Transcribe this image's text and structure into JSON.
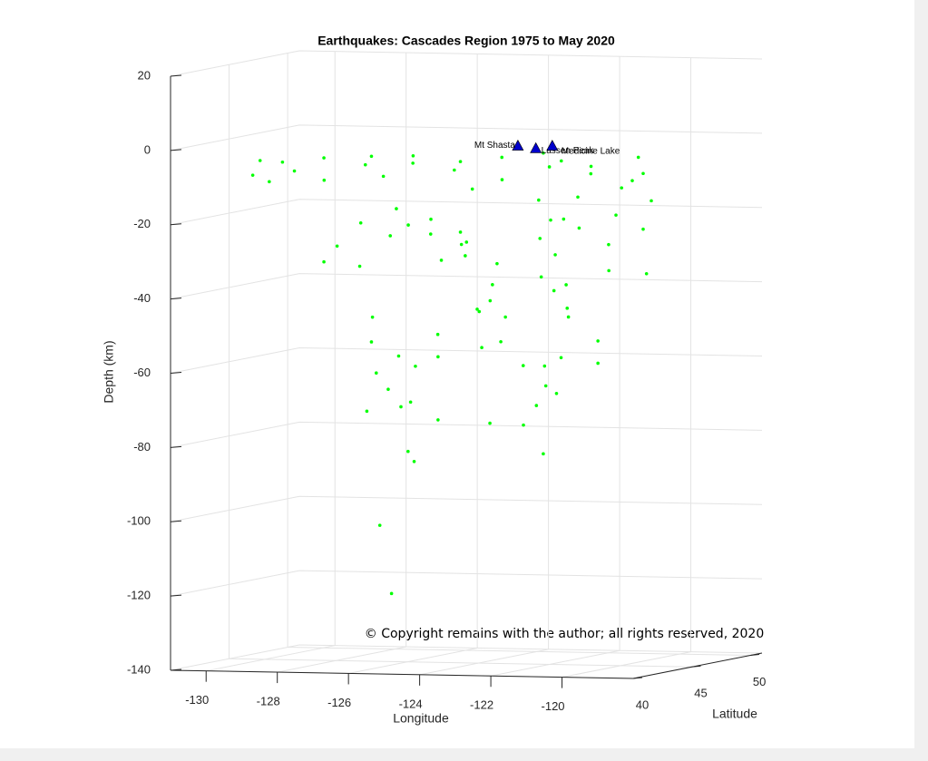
{
  "chart_data": {
    "type": "scatter3d",
    "title": "Earthquakes: Cascades Region 1975 to May 2020",
    "xlabel": "Longitude",
    "ylabel": "Latitude",
    "zlabel": "Depth (km)",
    "annotation": "© Copyright remains with the author; all rights reserved, 2020",
    "xlim": [
      -131,
      -118
    ],
    "ylim": [
      40,
      51
    ],
    "zlim": [
      -140,
      20
    ],
    "xticks": [
      -130,
      -128,
      -126,
      -124,
      -122,
      -120
    ],
    "yticks": [
      40,
      45,
      50
    ],
    "zticks": [
      -140,
      -120,
      -100,
      -80,
      -60,
      -40,
      -20,
      0,
      20
    ],
    "grid": true,
    "series": [
      {
        "color": "#00ff00",
        "x": [
          -129.5,
          -129,
          -128.5,
          -128,
          -127.5,
          -127,
          -126.5,
          -126,
          -125.5,
          -125,
          -124.5,
          -124,
          -123.5,
          -123,
          -122.5,
          -122,
          -121.5,
          -121,
          -120.5,
          -120,
          -119.5,
          -119.2,
          -119.3,
          -119.8,
          -120.3,
          -121.2,
          -121.8,
          -130.5,
          -129.8,
          -130.2,
          -126.3,
          -125.8,
          -125.5,
          -125,
          -124.8,
          -124.5,
          -124.2,
          -125.2,
          -124,
          -123.8,
          -123.6,
          -123.5,
          -123.4,
          -123.7,
          -126.8,
          -127.3,
          -127.8,
          -128.5,
          -127,
          -127.3,
          -127,
          -126.7,
          -126.4,
          -126.2,
          -126.5,
          -125.9,
          -125.6,
          -125.3,
          -124.8,
          -124.3,
          -123.9,
          -123.2,
          -122.9,
          -126.8,
          -126.3,
          -125.8,
          -126.6,
          -126.6,
          -124.8,
          -124,
          -122.3,
          -122.1,
          -122,
          -121.9,
          -122.2,
          -121.6,
          -121,
          -120.5,
          -120,
          -119.6,
          -121.5,
          -121.3,
          -120.8,
          -121.2,
          -122,
          -122.1,
          -122.2,
          -122.3,
          -122.4,
          -122.5,
          -121.8,
          -119.2,
          -120.8
        ],
        "y": [
          45,
          44.5,
          45.5,
          44,
          46,
          45,
          44.5,
          45.5,
          44,
          46,
          45,
          44.5,
          45.5,
          44,
          46,
          45,
          44.5,
          45.5,
          44,
          46,
          45,
          44.5,
          45.5,
          44,
          46,
          45,
          44.5,
          45.5,
          44,
          46,
          45,
          44.5,
          45.5,
          44,
          46,
          45,
          44.5,
          45.5,
          44,
          46,
          45,
          44.5,
          45.5,
          44,
          46,
          45,
          44.5,
          45.5,
          44,
          46,
          45,
          44.5,
          45.5,
          44,
          46,
          45,
          44.5,
          45.5,
          44,
          46,
          45,
          44.5,
          45.5,
          44,
          46,
          45,
          44.5,
          45.5,
          44,
          46,
          45,
          44.5,
          45.5,
          44,
          46,
          45,
          44.5,
          45.5,
          44,
          46,
          45,
          44.5,
          45.5,
          44,
          46,
          45,
          44.5,
          45.5,
          44,
          46,
          45,
          44.5,
          45.5
        ],
        "z": [
          -6,
          -8,
          -5,
          -10,
          -7,
          -4,
          -9,
          -6,
          -3,
          -8,
          -5,
          -12,
          -4,
          -9,
          -3,
          -6,
          -4,
          -8,
          -5,
          -10,
          -3,
          -7,
          -15,
          -18,
          -12,
          -14,
          -20,
          -10,
          -5,
          -12,
          -18,
          -22,
          -25,
          -20,
          -28,
          -24,
          -30,
          -32,
          -26,
          -33,
          -38,
          -42,
          -47,
          -44,
          -26,
          -22,
          -28,
          -33,
          -33,
          -48,
          -54,
          -62,
          -58,
          -66,
          -72,
          -70,
          -60,
          -52,
          -57,
          -46,
          -55,
          -53,
          -60,
          -72,
          -84,
          -86,
          -103,
          -122,
          -74,
          -76,
          -15,
          -25,
          -30,
          -35,
          -40,
          -20,
          -22,
          -27,
          -33,
          -35,
          -44,
          -46,
          -53,
          -37,
          -58,
          -65,
          -70,
          -60,
          -75,
          -84,
          -67,
          -22,
          -59
        ]
      }
    ],
    "volcanoes": {
      "color": "#0000cc",
      "names": [
        "Mt Shasta",
        "Lassen Peak",
        "Medicine Lake"
      ],
      "x": [
        -121.7,
        -120.9,
        -120.8
      ],
      "y": [
        41.4,
        40.5,
        41.6
      ],
      "z": [
        2,
        2,
        2
      ]
    }
  }
}
